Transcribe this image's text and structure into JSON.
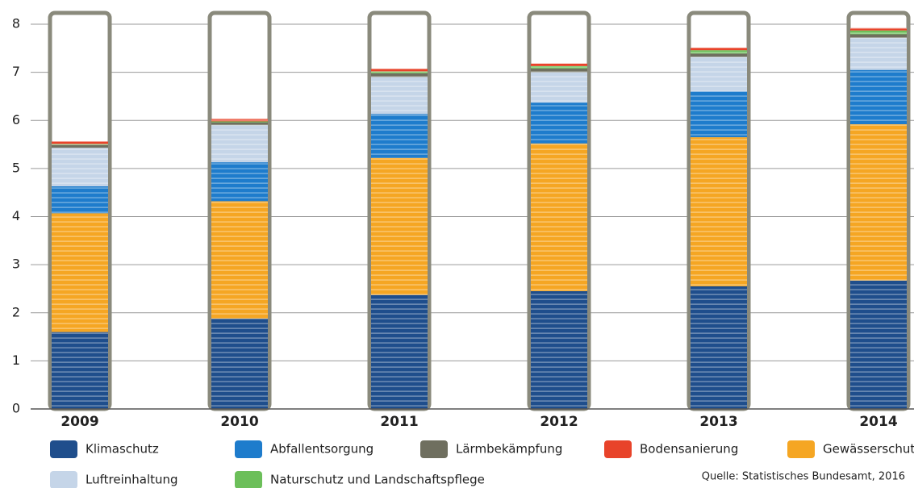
{
  "chart_data": {
    "type": "stacked-bar",
    "categories": [
      "2009",
      "2010",
      "2011",
      "2012",
      "2013",
      "2014"
    ],
    "series": [
      {
        "name": "Klimaschutz",
        "color": "#1f4e8c",
        "values": [
          1.6,
          1.88,
          2.37,
          2.45,
          2.55,
          2.67
        ]
      },
      {
        "name": "Gewässerschutz",
        "color": "#f5a623",
        "values": [
          2.47,
          2.44,
          2.85,
          3.07,
          3.1,
          3.25
        ]
      },
      {
        "name": "Abfallentsorgung",
        "color": "#1e7ccc",
        "values": [
          0.56,
          0.81,
          0.91,
          0.85,
          0.95,
          1.13
        ]
      },
      {
        "name": "Luftreinhaltung",
        "color": "#c5d5e8",
        "values": [
          0.8,
          0.77,
          0.77,
          0.63,
          0.72,
          0.67
        ]
      },
      {
        "name": "Lärmbekämpfung",
        "color": "#6f6f5f",
        "values": [
          0.06,
          0.06,
          0.08,
          0.08,
          0.07,
          0.07
        ]
      },
      {
        "name": "Naturschutz und Landschaftspflege",
        "color": "#6cbf5a",
        "values": [
          0.02,
          0.02,
          0.04,
          0.05,
          0.07,
          0.08
        ]
      },
      {
        "name": "Bodensanierung",
        "color": "#e8432a",
        "values": [
          0.05,
          0.05,
          0.05,
          0.05,
          0.05,
          0.05
        ]
      }
    ],
    "ylim": [
      0,
      8
    ],
    "yticks": [
      0,
      1,
      2,
      3,
      4,
      5,
      6,
      7,
      8
    ],
    "grid": true,
    "source": "Quelle: Statistisches Bundesamt, 2016"
  }
}
